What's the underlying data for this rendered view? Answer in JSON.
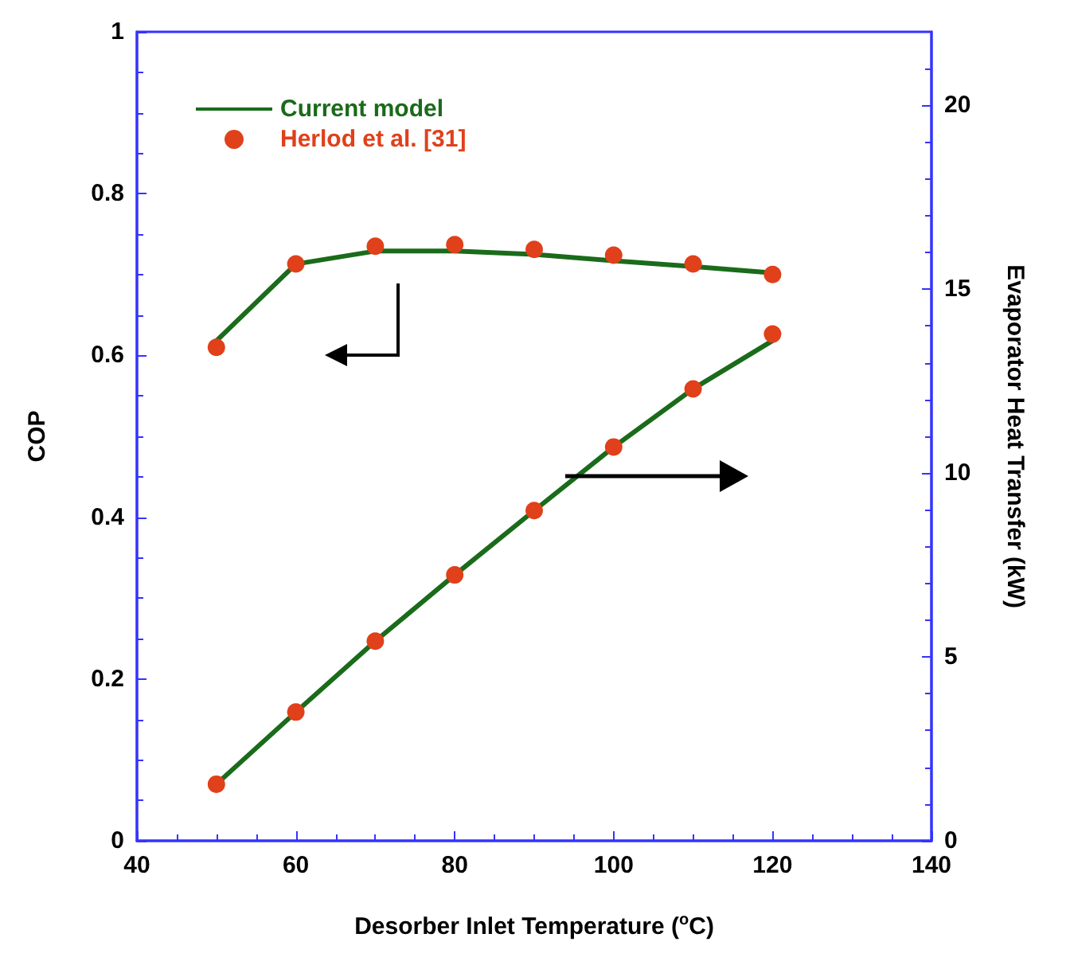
{
  "chart_data": {
    "type": "line",
    "xlabel": "Desorber Inlet Temperature ($^{o}$C)",
    "ylabel": "COP",
    "y2label": "Evaporator Heat Transfer (kW)",
    "x": [
      50,
      60,
      70,
      80,
      90,
      100,
      110,
      120
    ],
    "series": [
      {
        "name": "Current model",
        "marker": "none",
        "color": "#1a6b1a",
        "values": [
          0.618,
          0.713,
          0.729,
          0.729,
          0.725,
          0.717,
          0.71,
          0.702
        ]
      },
      {
        "name": "Herlod et al. [31]",
        "type": "scatter",
        "marker": "circle",
        "color": "#e0401a",
        "values": [
          0.61,
          0.713,
          0.735,
          0.737,
          0.731,
          0.724,
          0.713,
          0.7
        ]
      },
      {
        "axis": "y2",
        "marker": "none",
        "color": "#1a6b1a",
        "values": [
          1.54,
          3.5,
          5.43,
          7.23,
          8.98,
          10.71,
          12.29,
          13.6
        ]
      },
      {
        "type": "scatter",
        "marker": "circle",
        "axis": "y2",
        "color": "#e0401a",
        "values": [
          1.54,
          3.5,
          5.43,
          7.23,
          8.98,
          10.71,
          12.29,
          13.78
        ]
      }
    ],
    "xlim": [
      40,
      140
    ],
    "xticks": [
      40,
      60,
      80,
      100,
      120,
      140
    ],
    "ylim": [
      0,
      1
    ],
    "yticks": [
      0,
      0.2,
      0.4,
      0.6,
      0.8,
      1
    ],
    "y2lim": [
      0,
      22
    ],
    "y2ticks": [
      0,
      5,
      10,
      15,
      20
    ],
    "legend": "top left",
    "grid": false,
    "line_style": "solid"
  }
}
